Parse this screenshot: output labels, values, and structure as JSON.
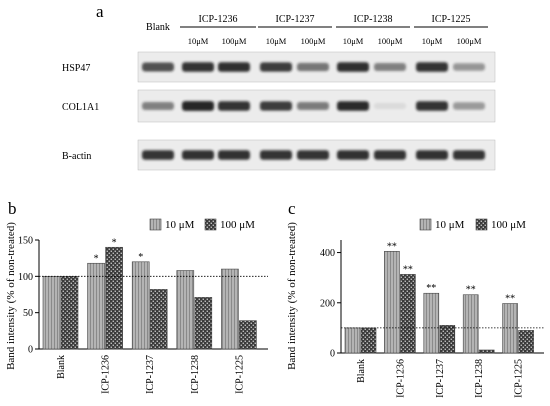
{
  "colors": {
    "bar_low": "#9a9a9a",
    "bar_high": "#333333",
    "band": "#161616",
    "blot_bg": "#ececec"
  },
  "blot": {
    "label": "a",
    "blank_label": "Blank",
    "groups": [
      "ICP-1236",
      "ICP-1237",
      "ICP-1238",
      "ICP-1225"
    ],
    "concentrations": [
      "10μM",
      "100μM"
    ],
    "rows": [
      {
        "label": "HSP47",
        "intensities": [
          0.72,
          0.86,
          0.88,
          0.82,
          0.55,
          0.88,
          0.5,
          0.86,
          0.4
        ]
      },
      {
        "label": "COL1A1",
        "intensities": [
          0.5,
          0.92,
          0.86,
          0.82,
          0.52,
          0.9,
          0.08,
          0.86,
          0.38
        ]
      },
      {
        "label": "Β-actin",
        "intensities": [
          0.85,
          0.87,
          0.87,
          0.86,
          0.86,
          0.87,
          0.86,
          0.87,
          0.85
        ]
      }
    ]
  },
  "chart_data": [
    {
      "panel": "b",
      "type": "bar",
      "ylabel": "Band intensity (% of non-treated)",
      "categories": [
        "Blank",
        "ICP-1236",
        "ICP-1237",
        "ICP-1238",
        "ICP-1225"
      ],
      "series": [
        {
          "name": "10 μM",
          "values": [
            100,
            118,
            120,
            108,
            110
          ]
        },
        {
          "name": "100 μM",
          "values": [
            100,
            140,
            82,
            71,
            39
          ]
        }
      ],
      "significance": [
        {
          "category": "ICP-1236",
          "series": "10 μM",
          "mark": "*"
        },
        {
          "category": "ICP-1236",
          "series": "100 μM",
          "mark": "*"
        },
        {
          "category": "ICP-1237",
          "series": "10 μM",
          "mark": "*"
        }
      ],
      "ylim": [
        0,
        150
      ],
      "yticks": [
        0,
        50,
        100,
        150
      ],
      "reference_line": 100,
      "legend": "top-right"
    },
    {
      "panel": "c",
      "type": "bar",
      "ylabel": "Band intensity (% of non-treated)",
      "categories": [
        "Blank",
        "ICP-1236",
        "ICP-1237",
        "ICP-1238",
        "ICP-1225"
      ],
      "series": [
        {
          "name": "10 μM",
          "values": [
            100,
            405,
            238,
            232,
            197
          ]
        },
        {
          "name": "100 μM",
          "values": [
            100,
            313,
            110,
            12,
            90
          ]
        }
      ],
      "significance": [
        {
          "category": "ICP-1236",
          "series": "10 μM",
          "mark": "**"
        },
        {
          "category": "ICP-1236",
          "series": "100 μM",
          "mark": "**"
        },
        {
          "category": "ICP-1237",
          "series": "10 μM",
          "mark": "**"
        },
        {
          "category": "ICP-1238",
          "series": "10 μM",
          "mark": "**"
        },
        {
          "category": "ICP-1225",
          "series": "10 μM",
          "mark": "**"
        }
      ],
      "ylim": [
        0,
        450
      ],
      "yticks": [
        0,
        200,
        400
      ],
      "reference_line": 100,
      "legend": "top-right"
    }
  ]
}
